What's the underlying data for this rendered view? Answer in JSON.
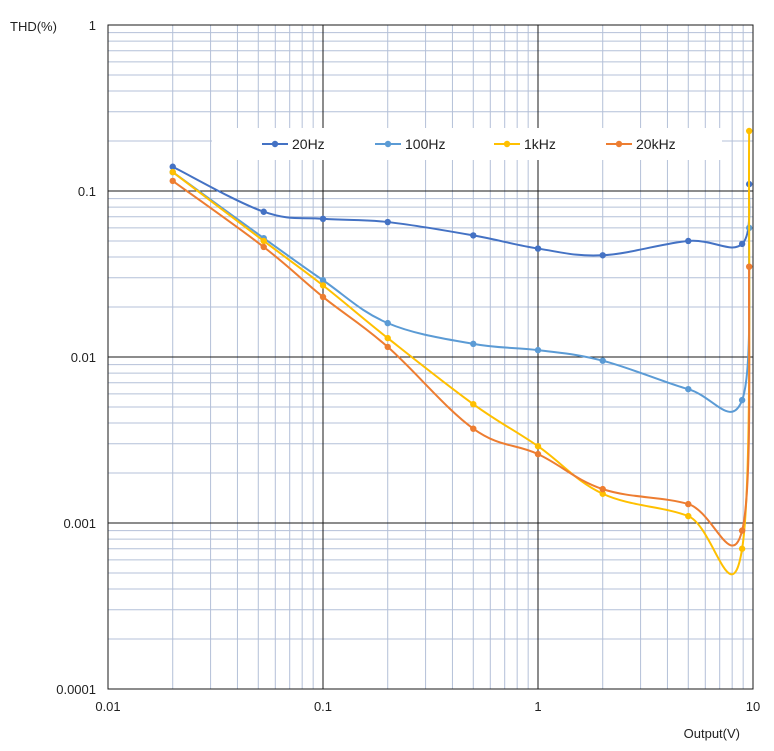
{
  "chart_data": {
    "type": "line",
    "xscale": "log",
    "yscale": "log",
    "xlim": [
      0.01,
      10
    ],
    "ylim": [
      0.0001,
      1
    ],
    "xlabel": "Output(V)",
    "ylabel": "THD(%)",
    "x_tick_labels": [
      "0.01",
      "0.1",
      "1",
      "10"
    ],
    "y_tick_labels": [
      "0.0001",
      "0.001",
      "0.01",
      "0.1",
      "1"
    ],
    "grid": true,
    "legend_position": "top",
    "series": [
      {
        "name": "20Hz",
        "color": "#4472c4",
        "x": [
          0.02,
          0.053,
          0.1,
          0.2,
          0.5,
          1,
          2,
          5,
          8.9,
          9.6
        ],
        "y": [
          0.14,
          0.075,
          0.068,
          0.065,
          0.054,
          0.045,
          0.041,
          0.05,
          0.048,
          0.11
        ]
      },
      {
        "name": "100Hz",
        "color": "#5b9bd5",
        "x": [
          0.02,
          0.053,
          0.1,
          0.2,
          0.5,
          1,
          2,
          5,
          8.9,
          9.6
        ],
        "y": [
          0.13,
          0.052,
          0.029,
          0.016,
          0.012,
          0.011,
          0.0095,
          0.0064,
          0.0055,
          0.06
        ]
      },
      {
        "name": "1kHz",
        "color": "#ffc000",
        "x": [
          0.02,
          0.053,
          0.1,
          0.2,
          0.5,
          1,
          2,
          5,
          8.9,
          9.6
        ],
        "y": [
          0.13,
          0.05,
          0.027,
          0.013,
          0.0052,
          0.0029,
          0.0015,
          0.0011,
          0.0007,
          0.23
        ]
      },
      {
        "name": "20kHz",
        "color": "#ed7d31",
        "x": [
          0.02,
          0.053,
          0.1,
          0.2,
          0.5,
          1,
          2,
          5,
          8.9,
          9.6
        ],
        "y": [
          0.115,
          0.046,
          0.023,
          0.0115,
          0.0037,
          0.0026,
          0.0016,
          0.0013,
          0.0009,
          0.035
        ]
      }
    ]
  }
}
